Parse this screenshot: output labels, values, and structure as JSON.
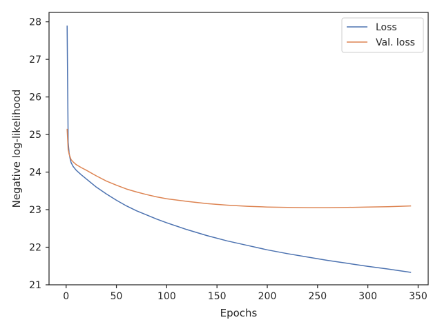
{
  "chart_data": {
    "type": "line",
    "title": "",
    "xlabel": "Epochs",
    "ylabel": "Negative log-likelihood",
    "xlim": [
      -17,
      360
    ],
    "ylim": [
      21,
      28.25
    ],
    "xticks": [
      0,
      50,
      100,
      150,
      200,
      250,
      300,
      350
    ],
    "yticks": [
      21,
      22,
      23,
      24,
      25,
      26,
      27,
      28
    ],
    "grid": false,
    "legend_position": "top-right",
    "series": [
      {
        "name": "Loss",
        "color": "#4c72b0",
        "x": [
          1,
          2,
          3,
          4,
          5,
          7,
          10,
          15,
          20,
          30,
          40,
          50,
          60,
          70,
          80,
          90,
          100,
          120,
          140,
          160,
          180,
          200,
          220,
          240,
          260,
          280,
          300,
          320,
          343
        ],
        "y": [
          27.9,
          24.8,
          24.5,
          24.35,
          24.25,
          24.15,
          24.05,
          23.93,
          23.82,
          23.6,
          23.42,
          23.25,
          23.1,
          22.97,
          22.86,
          22.75,
          22.65,
          22.47,
          22.31,
          22.17,
          22.05,
          21.93,
          21.83,
          21.74,
          21.65,
          21.57,
          21.49,
          21.42,
          21.33
        ]
      },
      {
        "name": "Val. loss",
        "color": "#dd8452",
        "x": [
          1,
          2,
          3,
          4,
          5,
          7,
          10,
          15,
          20,
          30,
          40,
          50,
          60,
          70,
          80,
          90,
          100,
          120,
          140,
          160,
          180,
          200,
          220,
          240,
          260,
          280,
          300,
          320,
          343
        ],
        "y": [
          25.15,
          24.6,
          24.48,
          24.4,
          24.33,
          24.27,
          24.2,
          24.12,
          24.05,
          23.9,
          23.76,
          23.65,
          23.55,
          23.47,
          23.4,
          23.34,
          23.29,
          23.22,
          23.16,
          23.12,
          23.09,
          23.07,
          23.06,
          23.05,
          23.05,
          23.06,
          23.07,
          23.08,
          23.1
        ]
      }
    ]
  }
}
